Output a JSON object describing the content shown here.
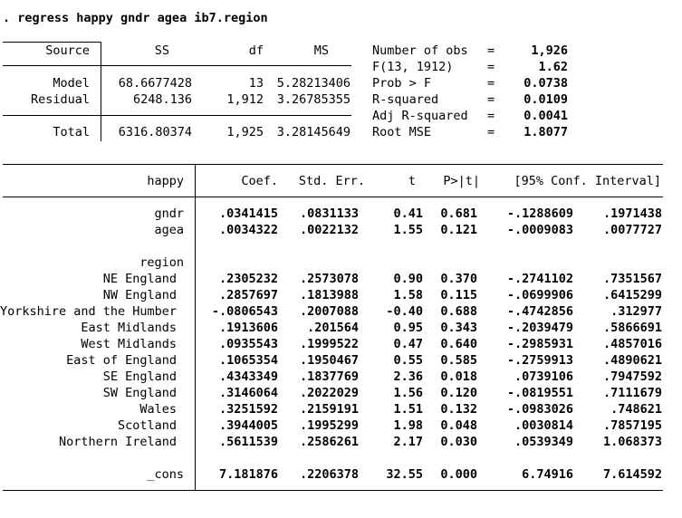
{
  "command": ". regress happy gndr agea ib7.region",
  "anova": {
    "headers": {
      "source": "Source",
      "ss": "SS",
      "df": "df",
      "ms": "MS"
    },
    "rows": [
      {
        "source": "Model",
        "ss": "68.6677428",
        "df": "13",
        "ms": "5.28213406"
      },
      {
        "source": "Residual",
        "ss": "6248.136",
        "df": "1,912",
        "ms": "3.26785355"
      }
    ],
    "total": {
      "source": "Total",
      "ss": "6316.80374",
      "df": "1,925",
      "ms": "3.28145649"
    }
  },
  "stats": [
    {
      "label": "Number of obs",
      "eq": "=",
      "value": "1,926"
    },
    {
      "label": "F(13, 1912)",
      "eq": "=",
      "value": "1.62"
    },
    {
      "label": "Prob > F",
      "eq": "=",
      "value": "0.0738"
    },
    {
      "label": "R-squared",
      "eq": "=",
      "value": "0.0109"
    },
    {
      "label": "Adj R-squared",
      "eq": "=",
      "value": "0.0041"
    },
    {
      "label": "Root MSE",
      "eq": "=",
      "value": "1.8077"
    }
  ],
  "coef_headers": {
    "var": "happy",
    "coef": "Coef.",
    "se": "Std. Err.",
    "t": "t",
    "p": "P>|t|",
    "ci": "[95% Conf. Interval]"
  },
  "coef_rows_top": [
    {
      "var": "gndr",
      "coef": ".0341415",
      "se": ".0831133",
      "t": "0.41",
      "p": "0.681",
      "lo": "-.1288609",
      "hi": ".1971438"
    },
    {
      "var": "agea",
      "coef": ".0034322",
      "se": ".0022132",
      "t": "1.55",
      "p": "0.121",
      "lo": "-.0009083",
      "hi": ".0077727"
    }
  ],
  "region_label": "region",
  "coef_rows_region": [
    {
      "var": "NE England",
      "coef": ".2305232",
      "se": ".2573078",
      "t": "0.90",
      "p": "0.370",
      "lo": "-.2741102",
      "hi": ".7351567"
    },
    {
      "var": "NW England",
      "coef": ".2857697",
      "se": ".1813988",
      "t": "1.58",
      "p": "0.115",
      "lo": "-.0699906",
      "hi": ".6415299"
    },
    {
      "var": "Yorkshire and the Humber",
      "coef": "-.0806543",
      "se": ".2007088",
      "t": "-0.40",
      "p": "0.688",
      "lo": "-.4742856",
      "hi": ".312977"
    },
    {
      "var": "East Midlands",
      "coef": ".1913606",
      "se": ".201564",
      "t": "0.95",
      "p": "0.343",
      "lo": "-.2039479",
      "hi": ".5866691"
    },
    {
      "var": "West Midlands",
      "coef": ".0935543",
      "se": ".1999522",
      "t": "0.47",
      "p": "0.640",
      "lo": "-.2985931",
      "hi": ".4857016"
    },
    {
      "var": "East of England",
      "coef": ".1065354",
      "se": ".1950467",
      "t": "0.55",
      "p": "0.585",
      "lo": "-.2759913",
      "hi": ".4890621"
    },
    {
      "var": "SE England",
      "coef": ".4343349",
      "se": ".1837769",
      "t": "2.36",
      "p": "0.018",
      "lo": ".0739106",
      "hi": ".7947592"
    },
    {
      "var": "SW England",
      "coef": ".3146064",
      "se": ".2022029",
      "t": "1.56",
      "p": "0.120",
      "lo": "-.0819551",
      "hi": ".7111679"
    },
    {
      "var": "Wales",
      "coef": ".3251592",
      "se": ".2159191",
      "t": "1.51",
      "p": "0.132",
      "lo": "-.0983026",
      "hi": ".748621"
    },
    {
      "var": "Scotland",
      "coef": ".3944005",
      "se": ".1995299",
      "t": "1.98",
      "p": "0.048",
      "lo": ".0030814",
      "hi": ".7857195"
    },
    {
      "var": "Northern Ireland",
      "coef": ".5611539",
      "se": ".2586261",
      "t": "2.17",
      "p": "0.030",
      "lo": ".0539349",
      "hi": "1.068373"
    }
  ],
  "cons_row": {
    "var": "_cons",
    "coef": "7.181876",
    "se": ".2206378",
    "t": "32.55",
    "p": "0.000",
    "lo": "6.74916",
    "hi": "7.614592"
  }
}
